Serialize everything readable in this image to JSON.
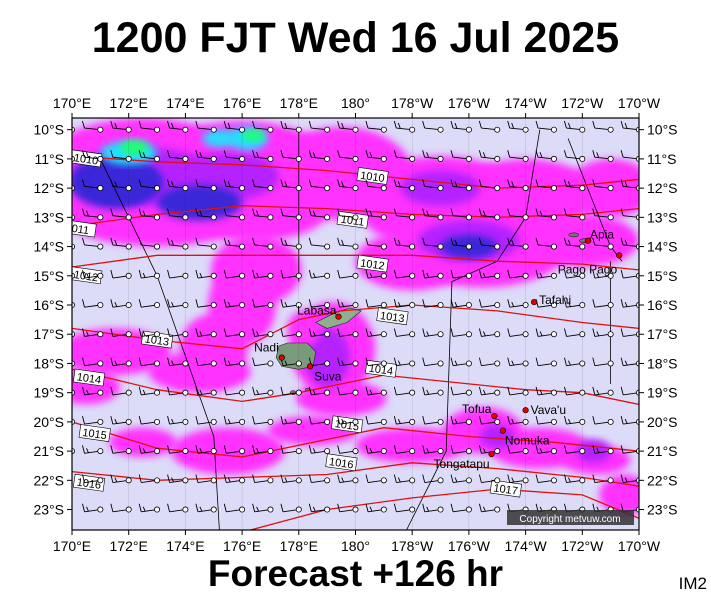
{
  "title": "1200 FJT Wed 16 Jul 2025",
  "footer": "Forecast +126 hr",
  "corner_mark": "IM2",
  "copyright": "Copyright metvuw.com",
  "axes": {
    "lon_labels": [
      "170°E",
      "172°E",
      "174°E",
      "176°E",
      "178°E",
      "180°",
      "178°W",
      "176°W",
      "174°W",
      "172°W",
      "170°W"
    ],
    "lat_labels": [
      "10°S",
      "11°S",
      "12°S",
      "13°S",
      "14°S",
      "15°S",
      "16°S",
      "17°S",
      "18°S",
      "19°S",
      "20°S",
      "21°S",
      "22°S",
      "23°S"
    ]
  },
  "places": [
    {
      "name": "Apia",
      "lon": -171.8,
      "lat": -13.8
    },
    {
      "name": "Pago Pago",
      "lon": -170.7,
      "lat": -14.3
    },
    {
      "name": "Tafahi",
      "lon": -173.7,
      "lat": -15.9
    },
    {
      "name": "Labasa",
      "lon": 179.4,
      "lat": -16.4
    },
    {
      "name": "Nadi",
      "lon": 177.4,
      "lat": -17.8
    },
    {
      "name": "Suva",
      "lon": 178.4,
      "lat": -18.1
    },
    {
      "name": "Vava'u",
      "lon": -174.0,
      "lat": -19.6
    },
    {
      "name": "Tofua",
      "lon": -175.1,
      "lat": -19.8
    },
    {
      "name": "Nomuka",
      "lon": -174.8,
      "lat": -20.3
    },
    {
      "name": "Tongatapu",
      "lon": -175.2,
      "lat": -21.1
    }
  ],
  "isobars": [
    {
      "label": "1010",
      "pts": [
        [
          170,
          -10.9
        ],
        [
          173,
          -11.1
        ],
        [
          176,
          -11.2
        ],
        [
          179,
          -11.4
        ],
        [
          -178,
          -11.7
        ],
        [
          -175,
          -12.0
        ],
        [
          -172,
          -11.9
        ],
        [
          -170,
          -11.7
        ]
      ],
      "label_at": [
        170.5,
        -11.0
      ]
    },
    {
      "label": "1010",
      "pts": [
        [
          181,
          -11.6
        ]
      ],
      "label_at": [
        180.6,
        -11.6
      ]
    },
    {
      "label": "011",
      "pts": [
        [
          170,
          -13.3
        ],
        [
          173,
          -12.9
        ],
        [
          176,
          -12.6
        ],
        [
          179,
          -12.7
        ],
        [
          -178,
          -12.9
        ],
        [
          -175,
          -13.0
        ],
        [
          -172,
          -12.9
        ],
        [
          -170,
          -12.7
        ]
      ],
      "label_at": [
        170.3,
        -13.4
      ]
    },
    {
      "label": "1011",
      "pts": [
        [
          179.5,
          -13.0
        ]
      ],
      "label_at": [
        179.9,
        -13.1
      ]
    },
    {
      "label": "1012",
      "pts": [
        [
          170,
          -14.7
        ],
        [
          173,
          -14.3
        ],
        [
          176,
          -14.3
        ],
        [
          179,
          -14.3
        ],
        [
          -178,
          -14.3
        ],
        [
          -175,
          -14.5
        ],
        [
          -172,
          -14.6
        ],
        [
          -170,
          -14.8
        ]
      ],
      "label_at": [
        170.5,
        -15.0
      ]
    },
    {
      "label": "1012",
      "pts": [
        [
          179.5,
          -14.7
        ]
      ],
      "label_at": [
        180.6,
        -14.6
      ]
    },
    {
      "label": "1013",
      "pts": [
        [
          170,
          -16.8
        ],
        [
          173,
          -17.2
        ],
        [
          176,
          -17.5
        ],
        [
          178,
          -16.5
        ],
        [
          179.5,
          -16.2
        ],
        [
          -178,
          -16.0
        ],
        [
          -175,
          -16.2
        ],
        [
          -172,
          -16.6
        ],
        [
          -170,
          -16.8
        ]
      ],
      "label_at": [
        173.0,
        -17.2
      ]
    },
    {
      "label": "1013",
      "pts": [
        [
          181.3,
          -16.4
        ]
      ],
      "label_at": [
        181.3,
        -16.4
      ]
    },
    {
      "label": "1014",
      "pts": [
        [
          170,
          -18.2
        ],
        [
          173,
          -18.9
        ],
        [
          176,
          -19.3
        ],
        [
          178,
          -19.0
        ],
        [
          -179,
          -18.4
        ],
        [
          -177,
          -18.6
        ],
        [
          -174,
          -18.9
        ],
        [
          -172,
          -19.0
        ],
        [
          -170,
          -19.4
        ]
      ],
      "label_at": [
        170.6,
        -18.5
      ]
    },
    {
      "label": "1014",
      "pts": [
        [
          180.9,
          -18.2
        ]
      ],
      "label_at": [
        180.9,
        -18.2
      ]
    },
    {
      "label": "1015",
      "pts": [
        [
          170,
          -20.0
        ],
        [
          173,
          -20.9
        ],
        [
          176,
          -21.2
        ],
        [
          179,
          -20.6
        ],
        [
          -179,
          -20.2
        ],
        [
          -176,
          -20.5
        ],
        [
          -173,
          -20.7
        ],
        [
          -170,
          -21.0
        ]
      ],
      "label_at": [
        170.8,
        -20.4
      ]
    },
    {
      "label": "1015",
      "pts": [
        [
          179.7,
          -20.1
        ]
      ],
      "label_at": [
        179.7,
        -20.1
      ]
    },
    {
      "label": "1016",
      "pts": [
        [
          170,
          -21.7
        ],
        [
          173,
          -22.0
        ],
        [
          176,
          -21.9
        ],
        [
          179,
          -21.8
        ],
        [
          -178,
          -21.4
        ],
        [
          -175,
          -21.6
        ],
        [
          -172,
          -21.9
        ],
        [
          -170,
          -22.2
        ]
      ],
      "label_at": [
        170.6,
        -22.1
      ]
    },
    {
      "label": "1016",
      "pts": [
        [
          179.5,
          -21.4
        ]
      ],
      "label_at": [
        179.5,
        -21.4
      ]
    },
    {
      "label": "1017",
      "pts": [
        [
          176.3,
          -23.7
        ],
        [
          179,
          -23.0
        ],
        [
          -178,
          -22.6
        ],
        [
          -175,
          -22.3
        ],
        [
          -172,
          -22.5
        ],
        [
          -170,
          -23.3
        ]
      ],
      "label_at": [
        -174.7,
        -22.3
      ]
    }
  ],
  "colors": {
    "ocean": "#dcdcf8",
    "rain_light": "#ff33ff",
    "rain_mid": "#b424ff",
    "rain_heavy": "#3a28d8",
    "rain_extreme": "#22e0ff",
    "rain_top": "#22ff66",
    "isobar": "#e01010",
    "front": "#000000"
  }
}
